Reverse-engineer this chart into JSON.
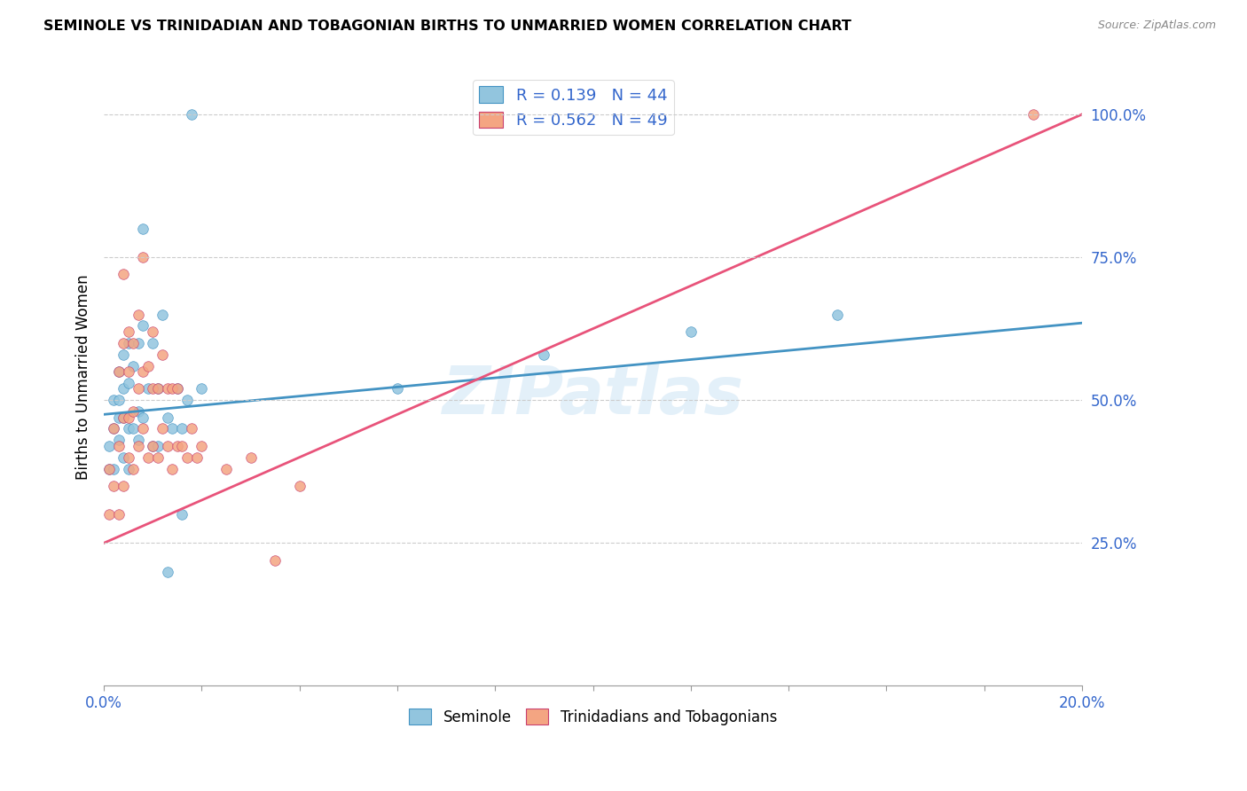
{
  "title": "SEMINOLE VS TRINIDADIAN AND TOBAGONIAN BIRTHS TO UNMARRIED WOMEN CORRELATION CHART",
  "source": "Source: ZipAtlas.com",
  "ylabel": "Births to Unmarried Women",
  "watermark": "ZIPatlas",
  "blue_color": "#92c5de",
  "pink_color": "#f4a582",
  "blue_line_color": "#4393c3",
  "pink_line_color": "#e8537a",
  "legend_blue_label": "R = 0.139   N = 44",
  "legend_pink_label": "R = 0.562   N = 49",
  "bottom_legend_blue": "Seminole",
  "bottom_legend_pink": "Trinidadians and Tobagonians",
  "xmin": 0.0,
  "xmax": 0.2,
  "ymin": 0.0,
  "ymax": 1.08,
  "seminole_x": [
    0.001,
    0.001,
    0.002,
    0.002,
    0.002,
    0.003,
    0.003,
    0.003,
    0.003,
    0.004,
    0.004,
    0.004,
    0.004,
    0.005,
    0.005,
    0.005,
    0.005,
    0.006,
    0.006,
    0.007,
    0.007,
    0.007,
    0.008,
    0.008,
    0.008,
    0.009,
    0.01,
    0.01,
    0.011,
    0.011,
    0.012,
    0.013,
    0.013,
    0.014,
    0.015,
    0.016,
    0.016,
    0.017,
    0.018,
    0.02,
    0.06,
    0.09,
    0.12,
    0.15
  ],
  "seminole_y": [
    0.38,
    0.42,
    0.45,
    0.5,
    0.38,
    0.43,
    0.47,
    0.5,
    0.55,
    0.4,
    0.47,
    0.52,
    0.58,
    0.38,
    0.45,
    0.53,
    0.6,
    0.45,
    0.56,
    0.43,
    0.48,
    0.6,
    0.47,
    0.63,
    0.8,
    0.52,
    0.42,
    0.6,
    0.42,
    0.52,
    0.65,
    0.47,
    0.2,
    0.45,
    0.52,
    0.45,
    0.3,
    0.5,
    1.0,
    0.52,
    0.52,
    0.58,
    0.62,
    0.65
  ],
  "trini_x": [
    0.001,
    0.001,
    0.002,
    0.002,
    0.003,
    0.003,
    0.003,
    0.004,
    0.004,
    0.004,
    0.004,
    0.005,
    0.005,
    0.005,
    0.005,
    0.006,
    0.006,
    0.006,
    0.007,
    0.007,
    0.007,
    0.008,
    0.008,
    0.008,
    0.009,
    0.009,
    0.01,
    0.01,
    0.01,
    0.011,
    0.011,
    0.012,
    0.012,
    0.013,
    0.013,
    0.014,
    0.014,
    0.015,
    0.015,
    0.016,
    0.017,
    0.018,
    0.019,
    0.02,
    0.025,
    0.03,
    0.035,
    0.04,
    0.19
  ],
  "trini_y": [
    0.3,
    0.38,
    0.35,
    0.45,
    0.3,
    0.42,
    0.55,
    0.35,
    0.47,
    0.6,
    0.72,
    0.4,
    0.47,
    0.55,
    0.62,
    0.38,
    0.48,
    0.6,
    0.42,
    0.52,
    0.65,
    0.45,
    0.55,
    0.75,
    0.4,
    0.56,
    0.42,
    0.52,
    0.62,
    0.4,
    0.52,
    0.45,
    0.58,
    0.42,
    0.52,
    0.38,
    0.52,
    0.42,
    0.52,
    0.42,
    0.4,
    0.45,
    0.4,
    0.42,
    0.38,
    0.4,
    0.22,
    0.35,
    1.0
  ],
  "blue_line_x0": 0.0,
  "blue_line_y0": 0.475,
  "blue_line_x1": 0.2,
  "blue_line_y1": 0.635,
  "pink_line_x0": 0.0,
  "pink_line_y0": 0.25,
  "pink_line_x1": 0.2,
  "pink_line_y1": 1.0
}
